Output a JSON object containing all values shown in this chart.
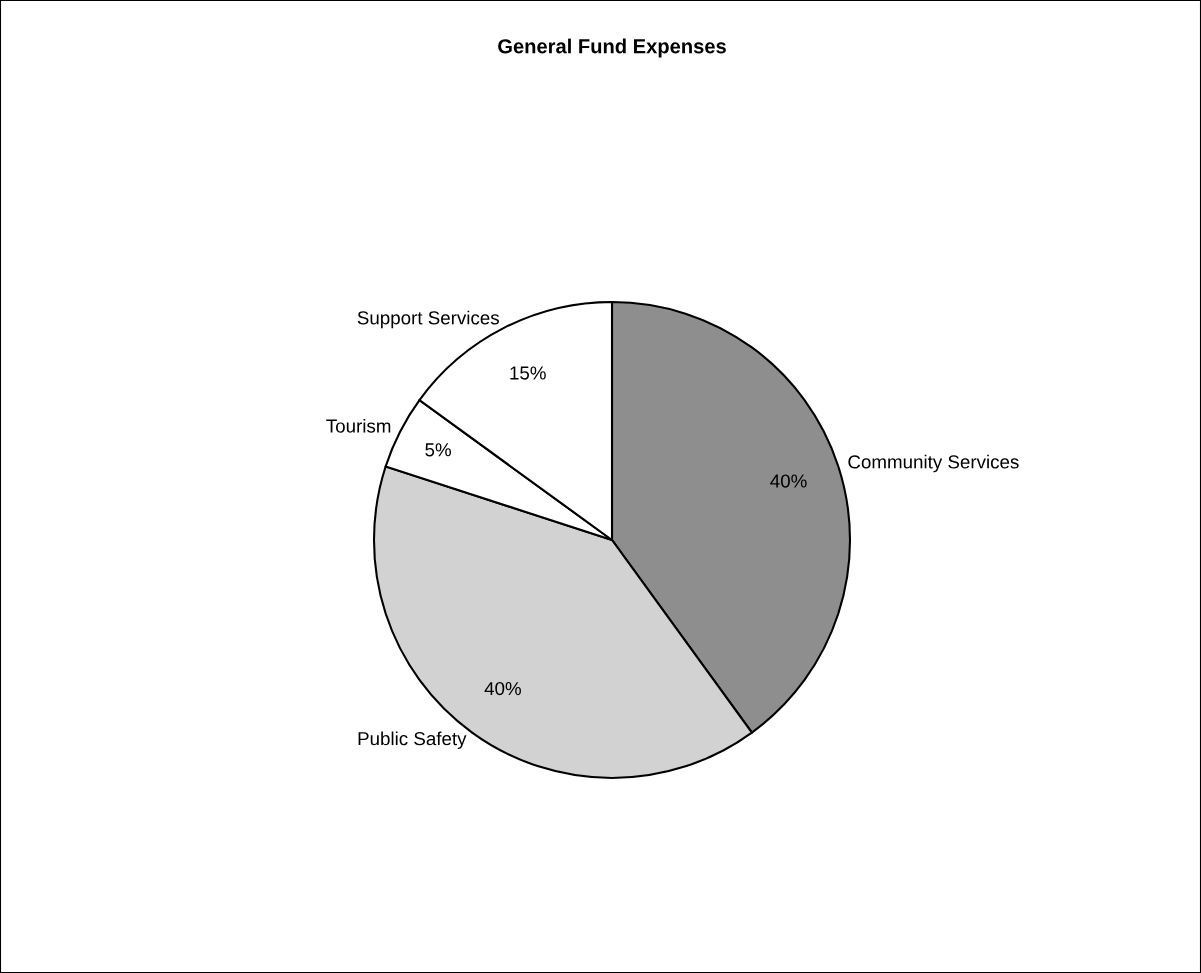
{
  "chart_data": {
    "type": "pie",
    "title": "General Fund Expenses",
    "categories": [
      "Community Services",
      "Public Safety",
      "Tourism",
      "Support Services"
    ],
    "values": [
      40,
      40,
      5,
      15
    ],
    "value_labels": [
      "40%",
      "40%",
      "5%",
      "15%"
    ],
    "colors": [
      "#8e8e8e",
      "#d2d2d2",
      "#ffffff",
      "#ffffff"
    ]
  }
}
